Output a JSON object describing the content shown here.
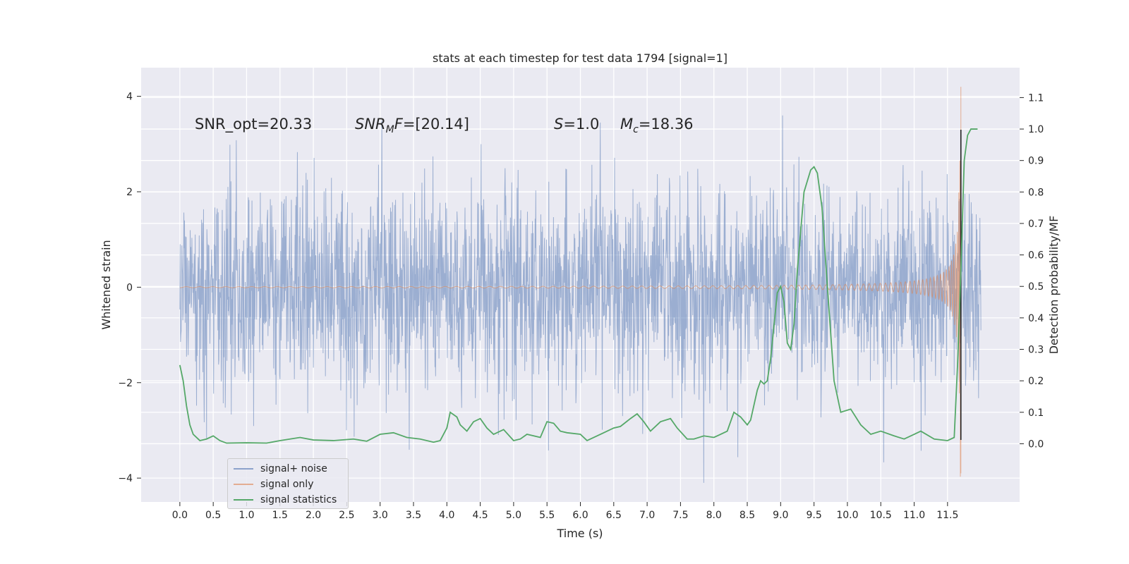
{
  "chart_data": {
    "type": "line",
    "title": "stats at each timestep for test data 1794 [signal=1]",
    "xlabel": "Time (s)",
    "ylabel": "Whitened strain",
    "y2label": "Detection probability/MF",
    "xlim": [
      -0.58,
      12.58
    ],
    "ylim": [
      -4.5,
      4.6
    ],
    "y2lim": [
      -0.185,
      1.195
    ],
    "x_ticks": [
      "0.0",
      "0.5",
      "1.0",
      "1.5",
      "2.0",
      "2.5",
      "3.0",
      "3.5",
      "4.0",
      "4.5",
      "5.0",
      "5.5",
      "6.0",
      "6.5",
      "7.0",
      "7.5",
      "8.0",
      "8.5",
      "9.0",
      "9.5",
      "10.0",
      "10.5",
      "11.0",
      "11.5"
    ],
    "y_ticks": [
      4,
      2,
      0,
      -2,
      -4
    ],
    "y_tick_labels": [
      "4",
      "2",
      "0",
      "−2",
      "−4"
    ],
    "y2_ticks": [
      "1.1",
      "1.0",
      "0.9",
      "0.8",
      "0.7",
      "0.6",
      "0.5",
      "0.4",
      "0.3",
      "0.2",
      "0.1",
      "0.0"
    ],
    "grid": true,
    "legend_position": "lower-left",
    "annotations": {
      "snr_opt": "SNR_opt=20.33",
      "snr_mf_sym": "SNR",
      "snr_mf_sub": "M",
      "snr_mf_sym2": "F",
      "snr_mf_val": "=[20.14]",
      "s_sym": "S",
      "s_val": "=1.0",
      "mc_sym": "M",
      "mc_sub": "c",
      "mc_val": "=18.36"
    },
    "series": [
      {
        "name": "signal+ noise",
        "color": "#4c72b0",
        "axis": "left",
        "x_range": [
          0.0,
          12.0
        ],
        "approx_envelope": [
          1.35,
          -1.35
        ],
        "peak_values": [
          3.6,
          -4.1
        ]
      },
      {
        "name": "signal only",
        "color": "#dd8452",
        "axis": "left",
        "x_range": [
          0.0,
          11.7
        ],
        "merger_time": 11.7,
        "peak_values": [
          4.2,
          -3.9
        ]
      },
      {
        "name": "signal statistics",
        "color": "#55a868",
        "axis": "right",
        "points": [
          [
            0.0,
            0.25
          ],
          [
            0.05,
            0.2
          ],
          [
            0.1,
            0.12
          ],
          [
            0.15,
            0.06
          ],
          [
            0.2,
            0.03
          ],
          [
            0.3,
            0.01
          ],
          [
            0.4,
            0.015
          ],
          [
            0.5,
            0.025
          ],
          [
            0.6,
            0.01
          ],
          [
            0.7,
            0.002
          ],
          [
            1.0,
            0.003
          ],
          [
            1.3,
            0.002
          ],
          [
            1.5,
            0.01
          ],
          [
            1.8,
            0.02
          ],
          [
            2.0,
            0.012
          ],
          [
            2.3,
            0.01
          ],
          [
            2.6,
            0.015
          ],
          [
            2.8,
            0.008
          ],
          [
            3.0,
            0.03
          ],
          [
            3.2,
            0.035
          ],
          [
            3.4,
            0.02
          ],
          [
            3.6,
            0.015
          ],
          [
            3.8,
            0.005
          ],
          [
            3.9,
            0.01
          ],
          [
            4.0,
            0.05
          ],
          [
            4.05,
            0.1
          ],
          [
            4.15,
            0.085
          ],
          [
            4.2,
            0.06
          ],
          [
            4.3,
            0.04
          ],
          [
            4.4,
            0.07
          ],
          [
            4.5,
            0.08
          ],
          [
            4.6,
            0.05
          ],
          [
            4.7,
            0.03
          ],
          [
            4.85,
            0.045
          ],
          [
            5.0,
            0.01
          ],
          [
            5.1,
            0.015
          ],
          [
            5.2,
            0.03
          ],
          [
            5.4,
            0.02
          ],
          [
            5.5,
            0.07
          ],
          [
            5.6,
            0.065
          ],
          [
            5.7,
            0.04
          ],
          [
            5.8,
            0.035
          ],
          [
            6.0,
            0.03
          ],
          [
            6.1,
            0.01
          ],
          [
            6.3,
            0.03
          ],
          [
            6.5,
            0.05
          ],
          [
            6.6,
            0.055
          ],
          [
            6.75,
            0.08
          ],
          [
            6.85,
            0.095
          ],
          [
            6.95,
            0.07
          ],
          [
            7.05,
            0.04
          ],
          [
            7.2,
            0.07
          ],
          [
            7.35,
            0.08
          ],
          [
            7.45,
            0.05
          ],
          [
            7.6,
            0.015
          ],
          [
            7.7,
            0.015
          ],
          [
            7.85,
            0.025
          ],
          [
            8.0,
            0.02
          ],
          [
            8.2,
            0.04
          ],
          [
            8.3,
            0.1
          ],
          [
            8.4,
            0.085
          ],
          [
            8.5,
            0.06
          ],
          [
            8.55,
            0.075
          ],
          [
            8.65,
            0.17
          ],
          [
            8.7,
            0.2
          ],
          [
            8.75,
            0.19
          ],
          [
            8.8,
            0.2
          ],
          [
            8.85,
            0.27
          ],
          [
            8.95,
            0.48
          ],
          [
            9.0,
            0.5
          ],
          [
            9.05,
            0.45
          ],
          [
            9.1,
            0.32
          ],
          [
            9.15,
            0.3
          ],
          [
            9.2,
            0.38
          ],
          [
            9.25,
            0.55
          ],
          [
            9.35,
            0.8
          ],
          [
            9.45,
            0.87
          ],
          [
            9.5,
            0.88
          ],
          [
            9.55,
            0.86
          ],
          [
            9.62,
            0.75
          ],
          [
            9.7,
            0.5
          ],
          [
            9.8,
            0.2
          ],
          [
            9.9,
            0.1
          ],
          [
            10.05,
            0.11
          ],
          [
            10.2,
            0.06
          ],
          [
            10.35,
            0.03
          ],
          [
            10.5,
            0.04
          ],
          [
            10.7,
            0.025
          ],
          [
            10.85,
            0.015
          ],
          [
            11.0,
            0.03
          ],
          [
            11.1,
            0.04
          ],
          [
            11.3,
            0.015
          ],
          [
            11.5,
            0.01
          ],
          [
            11.6,
            0.02
          ],
          [
            11.65,
            0.25
          ],
          [
            11.7,
            0.55
          ],
          [
            11.75,
            0.9
          ],
          [
            11.8,
            0.98
          ],
          [
            11.85,
            1.0
          ],
          [
            11.95,
            1.0
          ]
        ]
      }
    ]
  }
}
